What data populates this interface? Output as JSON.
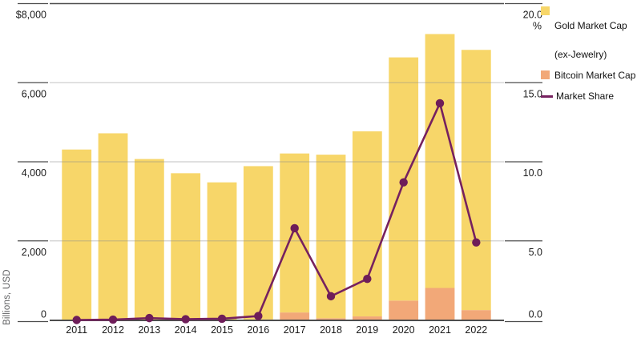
{
  "figure": {
    "y_axis_title": "Billions, USD",
    "right_axis_unit": "%",
    "legend": [
      {
        "label": "Gold Market Cap",
        "label2": "(ex-Jewelry)",
        "swatch": "square",
        "color": "#F7D669"
      },
      {
        "label": "Bitcoin Market Cap",
        "label2": "",
        "swatch": "square",
        "color": "#F2A878"
      },
      {
        "label": "Market Share",
        "label2": "",
        "swatch": "line",
        "color": "#76215F"
      }
    ]
  },
  "chart_data": {
    "type": "bar",
    "subtype": "stacked-bars-with-line-dual-axis",
    "categories": [
      "2011",
      "2012",
      "2013",
      "2014",
      "2015",
      "2016",
      "2017",
      "2018",
      "2019",
      "2020",
      "2021",
      "2022"
    ],
    "series": [
      {
        "name": "Gold Market Cap (ex-Jewelry)",
        "type": "bar",
        "stack": "marketcap",
        "axis": "left",
        "unit": "billions USD",
        "color": "#F7D669",
        "values": [
          4310,
          4719,
          4060,
          3705,
          3473,
          3875,
          4020,
          4135,
          4680,
          6150,
          6420,
          6580
        ]
      },
      {
        "name": "Bitcoin Market Cap",
        "type": "bar",
        "stack": "marketcap",
        "axis": "left",
        "unit": "billions USD",
        "color": "#F2A878",
        "values": [
          0,
          1,
          10,
          5,
          7,
          15,
          190,
          45,
          90,
          490,
          810,
          250
        ]
      },
      {
        "name": "Market Share",
        "type": "line",
        "axis": "right",
        "unit": "%",
        "color": "#76215F",
        "values": [
          0.0,
          0.02,
          0.12,
          0.05,
          0.08,
          0.25,
          5.8,
          1.5,
          2.6,
          8.7,
          13.7,
          4.9
        ]
      }
    ],
    "left_axis": {
      "title": "Billions, USD",
      "range": [
        0,
        8000
      ],
      "ticks": [
        0,
        2000,
        4000,
        6000,
        8000
      ],
      "tick_labels": [
        "0",
        "2,000",
        "4,000",
        "6,000",
        "$8,000"
      ]
    },
    "right_axis": {
      "title": "%",
      "range": [
        0,
        20
      ],
      "ticks": [
        0,
        5,
        10,
        15,
        20
      ],
      "tick_labels": [
        "0.0",
        "5.0",
        "10.0",
        "15.0",
        "20.0"
      ]
    },
    "grid": true,
    "legend_position": "top-right"
  },
  "colors": {
    "gold_bar": "#F7D669",
    "bitcoin_bar": "#F2A878",
    "share_line": "#76215F",
    "share_dot": "#6E1D59",
    "gridline": "#8C8C8C",
    "axis_dark": "#4D4D4D",
    "tick_text": "#1A1A1A",
    "axis_title_text": "#5E5F61",
    "background": "#FFFFFF"
  }
}
